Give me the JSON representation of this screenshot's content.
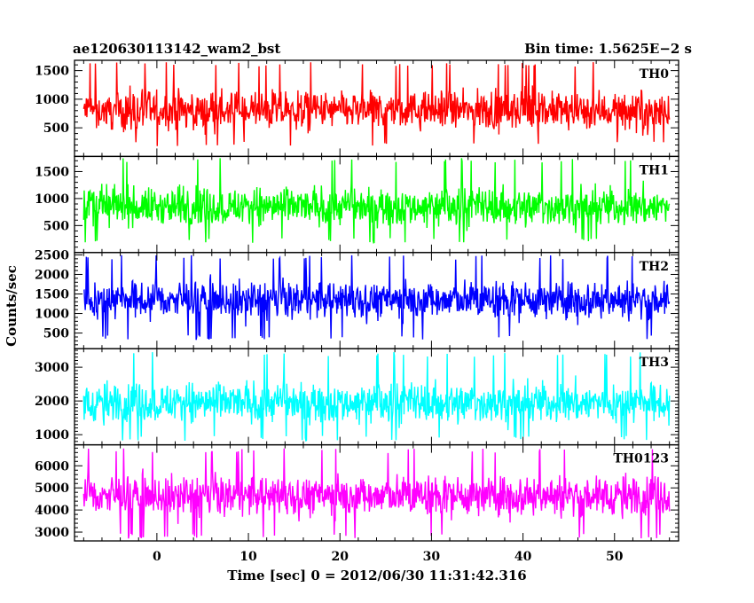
{
  "header": {
    "left_title": "ae120630113142_wam2_bst",
    "right_title": "Bin time: 1.5625E−2 s"
  },
  "chart_data": {
    "type": "line",
    "title": "ae120630113142_wam2_bst",
    "subtitle": "Bin time: 1.5625E−2 s",
    "xlabel": "Time [sec] 0 = 2012/06/30 11:31:42.316",
    "ylabel": "Counts/sec",
    "xlim": [
      -9,
      57
    ],
    "data_x_range": [
      -8,
      56
    ],
    "x_ticks": [
      0,
      10,
      20,
      30,
      40,
      50
    ],
    "x_tick_labels": [
      "0",
      "10",
      "20",
      "30",
      "40",
      "50"
    ],
    "grid": false,
    "legend": "none",
    "series": [
      {
        "name": "TH0",
        "color": "#ff0000",
        "ylim": [
          0,
          1680
        ],
        "mean": 800,
        "min": 180,
        "max": 1650,
        "y_ticks": [
          500,
          1000,
          1500
        ],
        "y_tick_labels": [
          "500",
          "1000",
          "1500"
        ]
      },
      {
        "name": "TH1",
        "color": "#00ff00",
        "ylim": [
          0,
          1780
        ],
        "mean": 850,
        "min": 180,
        "max": 1750,
        "y_ticks": [
          500,
          1000,
          1500
        ],
        "y_tick_labels": [
          "500",
          "1000",
          "1500"
        ]
      },
      {
        "name": "TH2",
        "color": "#0000ff",
        "ylim": [
          100,
          2560
        ],
        "mean": 1350,
        "min": 320,
        "max": 2500,
        "y_ticks": [
          500,
          1000,
          1500,
          2000,
          2500
        ],
        "y_tick_labels": [
          "500",
          "1000",
          "1500",
          "2000",
          "2500"
        ]
      },
      {
        "name": "TH3",
        "color": "#00ffff",
        "ylim": [
          700,
          3550
        ],
        "mean": 1950,
        "min": 820,
        "max": 3450,
        "y_ticks": [
          1000,
          2000,
          3000
        ],
        "y_tick_labels": [
          "1000",
          "2000",
          "3000"
        ]
      },
      {
        "name": "TH0123",
        "color": "#ff00ff",
        "ylim": [
          2600,
          6950
        ],
        "mean": 4650,
        "min": 2700,
        "max": 6800,
        "y_ticks": [
          3000,
          4000,
          5000,
          6000
        ],
        "y_tick_labels": [
          "3000",
          "4000",
          "5000",
          "6000"
        ]
      }
    ]
  }
}
